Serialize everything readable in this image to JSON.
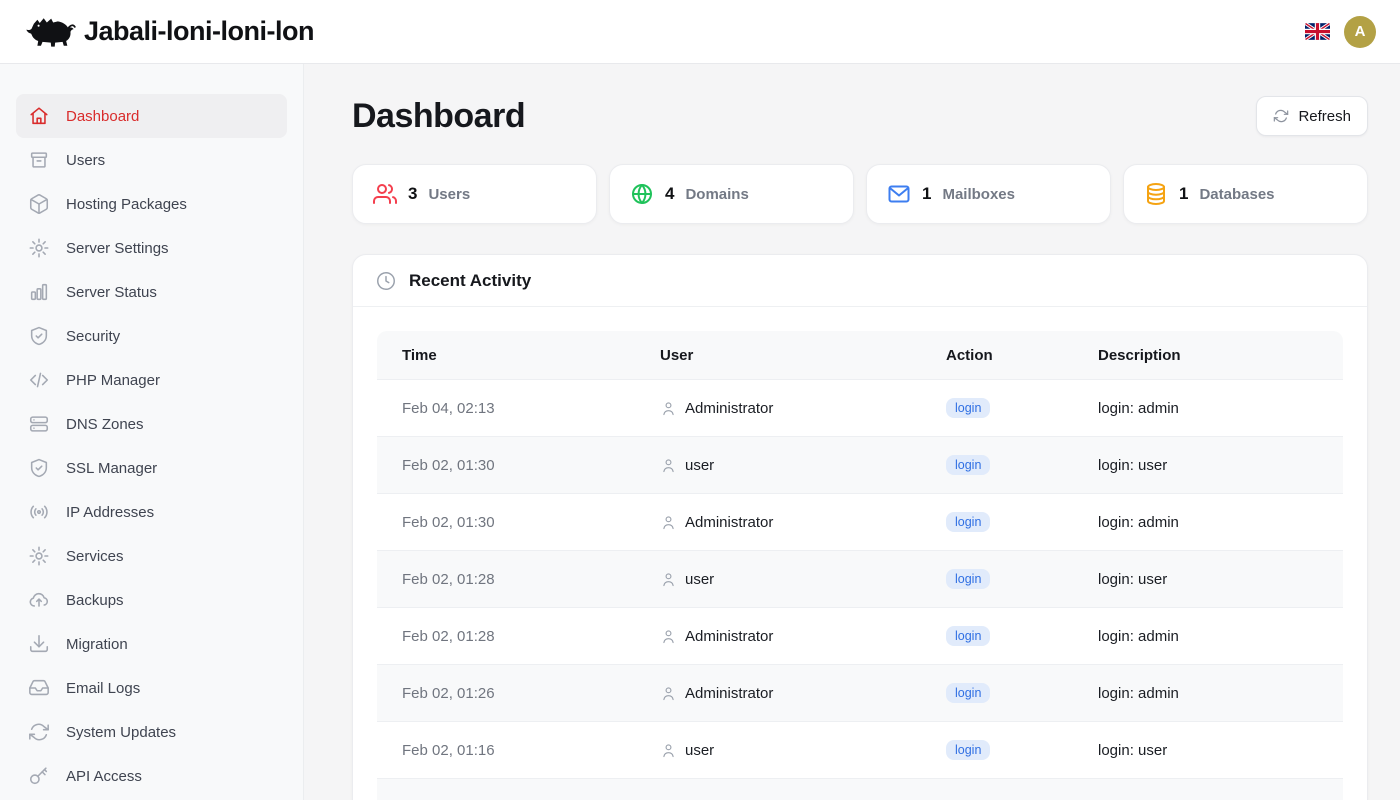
{
  "brand": {
    "title": "Jabali-loni-loni-lon",
    "logo_icon": "boar-icon"
  },
  "header": {
    "language_flag": "uk-flag-icon",
    "avatar_initial": "A",
    "avatar_color": "#b3a145"
  },
  "sidebar": {
    "items": [
      {
        "label": "Dashboard",
        "icon": "home-icon",
        "active": true
      },
      {
        "label": "Users",
        "icon": "drawer-icon",
        "active": false
      },
      {
        "label": "Hosting Packages",
        "icon": "package-icon",
        "active": false
      },
      {
        "label": "Server Settings",
        "icon": "gear-icon",
        "active": false
      },
      {
        "label": "Server Status",
        "icon": "bar-chart-icon",
        "active": false
      },
      {
        "label": "Security",
        "icon": "shield-check-icon",
        "active": false
      },
      {
        "label": "PHP Manager",
        "icon": "code-icon",
        "active": false
      },
      {
        "label": "DNS Zones",
        "icon": "server-stack-icon",
        "active": false
      },
      {
        "label": "SSL Manager",
        "icon": "shield-check-icon",
        "active": false
      },
      {
        "label": "IP Addresses",
        "icon": "broadcast-icon",
        "active": false
      },
      {
        "label": "Services",
        "icon": "gear-icon",
        "active": false
      },
      {
        "label": "Backups",
        "icon": "cloud-upload-icon",
        "active": false
      },
      {
        "label": "Migration",
        "icon": "download-icon",
        "active": false
      },
      {
        "label": "Email Logs",
        "icon": "inbox-icon",
        "active": false
      },
      {
        "label": "System Updates",
        "icon": "refresh-icon",
        "active": false
      },
      {
        "label": "API Access",
        "icon": "key-icon",
        "active": false
      }
    ]
  },
  "page": {
    "title": "Dashboard",
    "refresh_label": "Refresh",
    "refresh_icon": "refresh-icon"
  },
  "stats": [
    {
      "value": "3",
      "label": "Users",
      "icon": "users-icon",
      "color": "#f43f4e"
    },
    {
      "value": "4",
      "label": "Domains",
      "icon": "globe-icon",
      "color": "#1fc25a"
    },
    {
      "value": "1",
      "label": "Mailboxes",
      "icon": "mail-icon",
      "color": "#3d7ef0"
    },
    {
      "value": "1",
      "label": "Databases",
      "icon": "database-icon",
      "color": "#f5a312"
    }
  ],
  "activity": {
    "title": "Recent Activity",
    "icon": "clock-icon",
    "columns": [
      "Time",
      "User",
      "Action",
      "Description"
    ],
    "rows": [
      {
        "time": "Feb 04, 02:13",
        "user": "Administrator",
        "action": "login",
        "description": "login: admin"
      },
      {
        "time": "Feb 02, 01:30",
        "user": "user",
        "action": "login",
        "description": "login: user"
      },
      {
        "time": "Feb 02, 01:30",
        "user": "Administrator",
        "action": "login",
        "description": "login: admin"
      },
      {
        "time": "Feb 02, 01:28",
        "user": "user",
        "action": "login",
        "description": "login: user"
      },
      {
        "time": "Feb 02, 01:28",
        "user": "Administrator",
        "action": "login",
        "description": "login: admin"
      },
      {
        "time": "Feb 02, 01:26",
        "user": "Administrator",
        "action": "login",
        "description": "login: admin"
      },
      {
        "time": "Feb 02, 01:16",
        "user": "user",
        "action": "login",
        "description": "login: user"
      }
    ]
  }
}
